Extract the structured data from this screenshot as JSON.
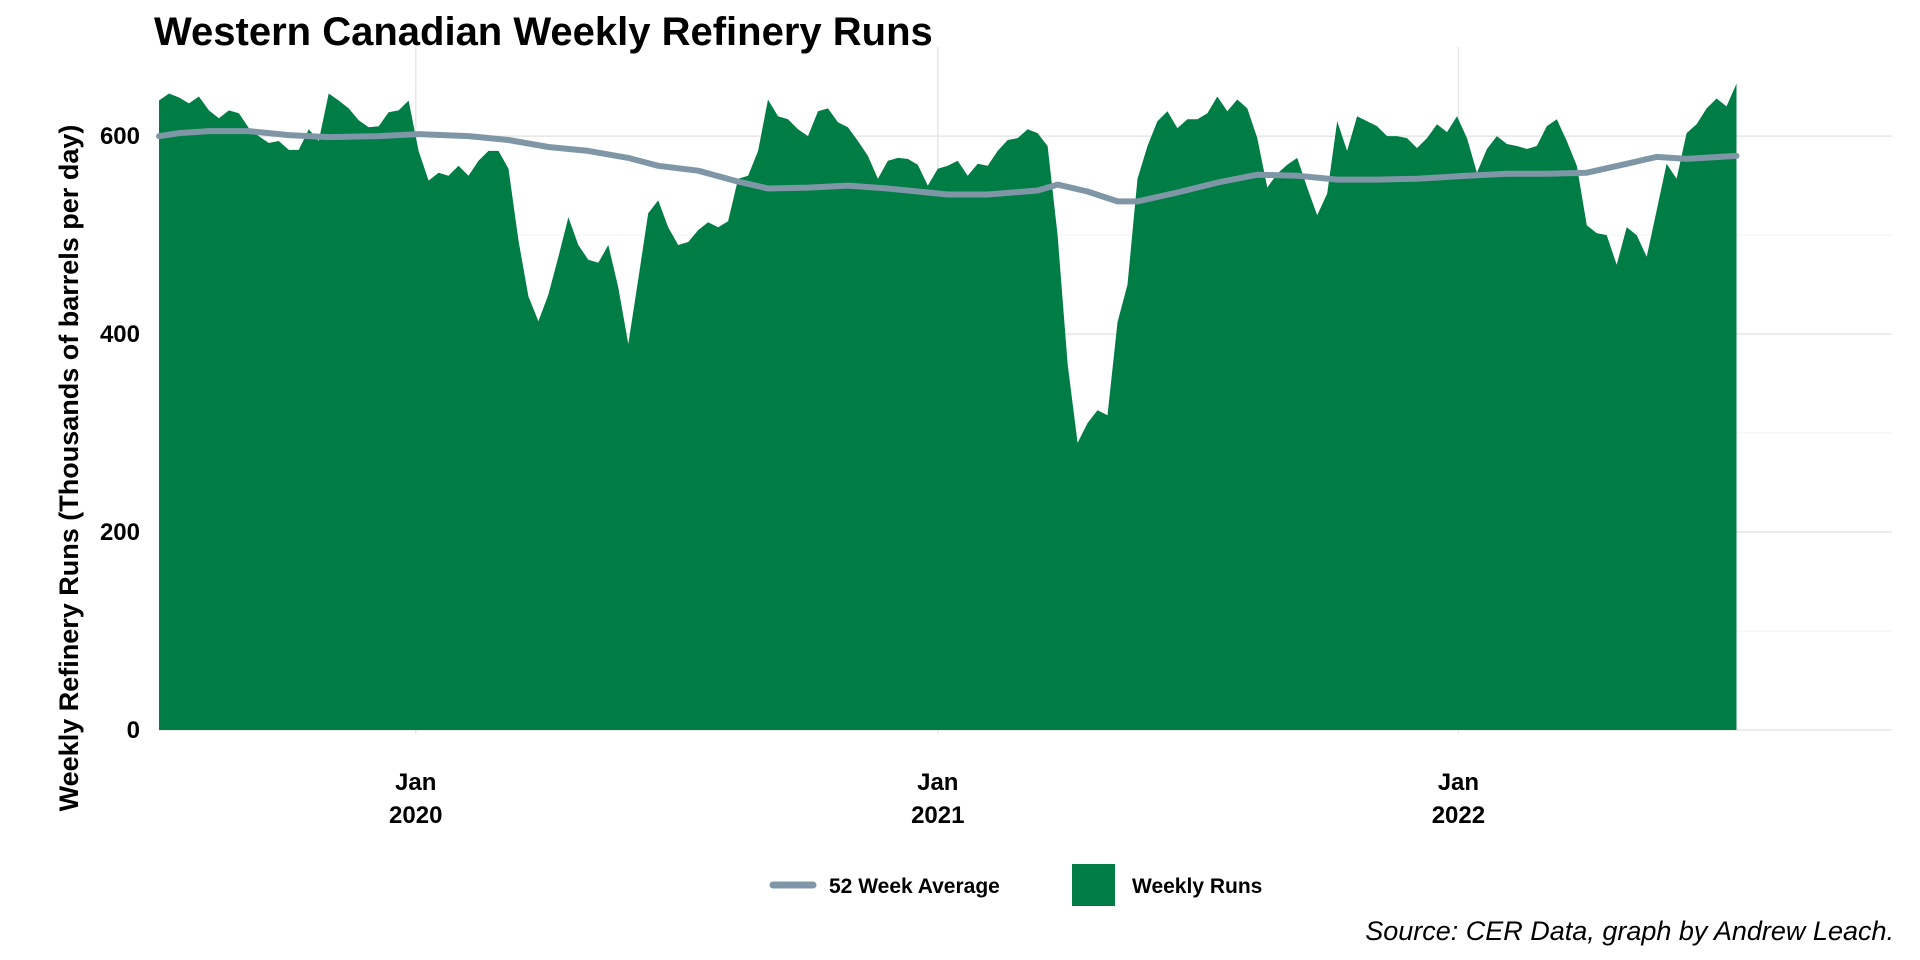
{
  "chart_data": {
    "type": "area",
    "title": "Western Canadian Weekly Refinery Runs",
    "xlabel": "",
    "ylabel": "Weekly Refinery Runs (Thousands of barrels per day)",
    "ylim": [
      0,
      690
    ],
    "xlim": [
      "2019-07-05",
      "2022-11-01"
    ],
    "y_ticks": [
      0,
      200,
      400,
      600
    ],
    "x_ticks": [
      {
        "date": "2020-01-01",
        "label": [
          "Jan",
          "2020"
        ]
      },
      {
        "date": "2021-01-01",
        "label": [
          "Jan",
          "2021"
        ]
      },
      {
        "date": "2022-01-01",
        "label": [
          "Jan",
          "2022"
        ]
      }
    ],
    "grid": true,
    "legend_position": "bottom",
    "series": [
      {
        "name": "Weekly Runs",
        "kind": "area",
        "color": "#007d45",
        "points": [
          [
            "2019-07-05",
            636
          ],
          [
            "2019-07-12",
            643
          ],
          [
            "2019-07-19",
            639
          ],
          [
            "2019-07-26",
            633
          ],
          [
            "2019-08-02",
            640
          ],
          [
            "2019-08-09",
            626
          ],
          [
            "2019-08-16",
            618
          ],
          [
            "2019-08-23",
            626
          ],
          [
            "2019-08-30",
            623
          ],
          [
            "2019-09-06",
            608
          ],
          [
            "2019-09-13",
            600
          ],
          [
            "2019-09-20",
            593
          ],
          [
            "2019-09-27",
            595
          ],
          [
            "2019-10-04",
            586
          ],
          [
            "2019-10-11",
            586
          ],
          [
            "2019-10-18",
            607
          ],
          [
            "2019-10-25",
            595
          ],
          [
            "2019-11-01",
            643
          ],
          [
            "2019-11-08",
            636
          ],
          [
            "2019-11-15",
            628
          ],
          [
            "2019-11-22",
            616
          ],
          [
            "2019-11-29",
            609
          ],
          [
            "2019-12-06",
            610
          ],
          [
            "2019-12-13",
            624
          ],
          [
            "2019-12-20",
            626
          ],
          [
            "2019-12-27",
            636
          ],
          [
            "2020-01-03",
            585
          ],
          [
            "2020-01-10",
            555
          ],
          [
            "2020-01-17",
            563
          ],
          [
            "2020-01-24",
            560
          ],
          [
            "2020-01-31",
            570
          ],
          [
            "2020-02-07",
            560
          ],
          [
            "2020-02-14",
            575
          ],
          [
            "2020-02-21",
            585
          ],
          [
            "2020-02-28",
            585
          ],
          [
            "2020-03-06",
            567
          ],
          [
            "2020-03-13",
            495
          ],
          [
            "2020-03-20",
            438
          ],
          [
            "2020-03-27",
            413
          ],
          [
            "2020-04-03",
            440
          ],
          [
            "2020-04-10",
            478
          ],
          [
            "2020-04-17",
            518
          ],
          [
            "2020-04-24",
            490
          ],
          [
            "2020-05-01",
            475
          ],
          [
            "2020-05-08",
            472
          ],
          [
            "2020-05-15",
            490
          ],
          [
            "2020-05-22",
            447
          ],
          [
            "2020-05-29",
            390
          ],
          [
            "2020-06-05",
            455
          ],
          [
            "2020-06-12",
            522
          ],
          [
            "2020-06-19",
            535
          ],
          [
            "2020-06-26",
            508
          ],
          [
            "2020-07-03",
            490
          ],
          [
            "2020-07-10",
            493
          ],
          [
            "2020-07-17",
            505
          ],
          [
            "2020-07-24",
            513
          ],
          [
            "2020-07-31",
            508
          ],
          [
            "2020-08-07",
            514
          ],
          [
            "2020-08-14",
            557
          ],
          [
            "2020-08-21",
            560
          ],
          [
            "2020-08-28",
            585
          ],
          [
            "2020-09-04",
            637
          ],
          [
            "2020-09-11",
            620
          ],
          [
            "2020-09-18",
            617
          ],
          [
            "2020-09-25",
            607
          ],
          [
            "2020-10-02",
            600
          ],
          [
            "2020-10-09",
            625
          ],
          [
            "2020-10-16",
            628
          ],
          [
            "2020-10-23",
            614
          ],
          [
            "2020-10-30",
            609
          ],
          [
            "2020-11-06",
            595
          ],
          [
            "2020-11-13",
            580
          ],
          [
            "2020-11-20",
            557
          ],
          [
            "2020-11-27",
            575
          ],
          [
            "2020-12-04",
            578
          ],
          [
            "2020-12-11",
            577
          ],
          [
            "2020-12-18",
            571
          ],
          [
            "2020-12-25",
            550
          ],
          [
            "2021-01-01",
            567
          ],
          [
            "2021-01-08",
            570
          ],
          [
            "2021-01-15",
            575
          ],
          [
            "2021-01-22",
            560
          ],
          [
            "2021-01-29",
            572
          ],
          [
            "2021-02-05",
            570
          ],
          [
            "2021-02-12",
            585
          ],
          [
            "2021-02-19",
            596
          ],
          [
            "2021-02-26",
            598
          ],
          [
            "2021-03-05",
            607
          ],
          [
            "2021-03-12",
            603
          ],
          [
            "2021-03-19",
            590
          ],
          [
            "2021-03-26",
            500
          ],
          [
            "2021-04-02",
            370
          ],
          [
            "2021-04-09",
            290
          ],
          [
            "2021-04-16",
            310
          ],
          [
            "2021-04-23",
            323
          ],
          [
            "2021-04-30",
            318
          ],
          [
            "2021-05-07",
            412
          ],
          [
            "2021-05-14",
            450
          ],
          [
            "2021-05-21",
            557
          ],
          [
            "2021-05-28",
            590
          ],
          [
            "2021-06-04",
            615
          ],
          [
            "2021-06-11",
            625
          ],
          [
            "2021-06-18",
            608
          ],
          [
            "2021-06-25",
            617
          ],
          [
            "2021-07-02",
            617
          ],
          [
            "2021-07-09",
            623
          ],
          [
            "2021-07-16",
            640
          ],
          [
            "2021-07-23",
            625
          ],
          [
            "2021-07-30",
            637
          ],
          [
            "2021-08-06",
            628
          ],
          [
            "2021-08-13",
            598
          ],
          [
            "2021-08-20",
            548
          ],
          [
            "2021-08-27",
            562
          ],
          [
            "2021-09-03",
            571
          ],
          [
            "2021-09-10",
            578
          ],
          [
            "2021-09-17",
            548
          ],
          [
            "2021-09-24",
            520
          ],
          [
            "2021-10-01",
            542
          ],
          [
            "2021-10-08",
            615
          ],
          [
            "2021-10-15",
            585
          ],
          [
            "2021-10-22",
            620
          ],
          [
            "2021-10-29",
            615
          ],
          [
            "2021-11-05",
            610
          ],
          [
            "2021-11-12",
            600
          ],
          [
            "2021-11-19",
            600
          ],
          [
            "2021-11-26",
            598
          ],
          [
            "2021-12-03",
            588
          ],
          [
            "2021-12-10",
            598
          ],
          [
            "2021-12-17",
            612
          ],
          [
            "2021-12-24",
            604
          ],
          [
            "2021-12-31",
            620
          ],
          [
            "2022-01-07",
            598
          ],
          [
            "2022-01-14",
            563
          ],
          [
            "2022-01-21",
            587
          ],
          [
            "2022-01-28",
            600
          ],
          [
            "2022-02-04",
            592
          ],
          [
            "2022-02-11",
            590
          ],
          [
            "2022-02-18",
            587
          ],
          [
            "2022-02-25",
            590
          ],
          [
            "2022-03-04",
            610
          ],
          [
            "2022-03-11",
            617
          ],
          [
            "2022-03-18",
            595
          ],
          [
            "2022-03-25",
            570
          ],
          [
            "2022-04-01",
            510
          ],
          [
            "2022-04-08",
            502
          ],
          [
            "2022-04-15",
            500
          ],
          [
            "2022-04-22",
            470
          ],
          [
            "2022-04-29",
            508
          ],
          [
            "2022-05-06",
            500
          ],
          [
            "2022-05-13",
            478
          ],
          [
            "2022-05-20",
            525
          ],
          [
            "2022-05-27",
            572
          ],
          [
            "2022-06-03",
            557
          ],
          [
            "2022-06-10",
            603
          ],
          [
            "2022-06-17",
            612
          ],
          [
            "2022-06-24",
            628
          ],
          [
            "2022-07-01",
            638
          ],
          [
            "2022-07-08",
            630
          ],
          [
            "2022-07-15",
            653
          ]
        ]
      },
      {
        "name": "52 Week Average",
        "kind": "line",
        "color": "#7f96a6",
        "points": [
          [
            "2019-07-05",
            600
          ],
          [
            "2019-07-19",
            603
          ],
          [
            "2019-08-09",
            605
          ],
          [
            "2019-09-06",
            605
          ],
          [
            "2019-10-04",
            601
          ],
          [
            "2019-11-01",
            599
          ],
          [
            "2019-12-06",
            600
          ],
          [
            "2020-01-03",
            602
          ],
          [
            "2020-02-07",
            600
          ],
          [
            "2020-03-06",
            596
          ],
          [
            "2020-04-03",
            589
          ],
          [
            "2020-05-01",
            585
          ],
          [
            "2020-05-29",
            578
          ],
          [
            "2020-06-19",
            570
          ],
          [
            "2020-07-17",
            565
          ],
          [
            "2020-08-14",
            554
          ],
          [
            "2020-09-04",
            547
          ],
          [
            "2020-10-02",
            548
          ],
          [
            "2020-10-30",
            550
          ],
          [
            "2020-11-27",
            547
          ],
          [
            "2020-12-18",
            544
          ],
          [
            "2021-01-08",
            541
          ],
          [
            "2021-02-05",
            541
          ],
          [
            "2021-03-12",
            545
          ],
          [
            "2021-03-26",
            551
          ],
          [
            "2021-04-16",
            544
          ],
          [
            "2021-05-07",
            534
          ],
          [
            "2021-05-21",
            534
          ],
          [
            "2021-06-18",
            543
          ],
          [
            "2021-07-16",
            553
          ],
          [
            "2021-08-13",
            561
          ],
          [
            "2021-09-10",
            560
          ],
          [
            "2021-10-08",
            556
          ],
          [
            "2021-11-05",
            556
          ],
          [
            "2021-12-03",
            557
          ],
          [
            "2022-01-07",
            560
          ],
          [
            "2022-02-04",
            562
          ],
          [
            "2022-03-04",
            562
          ],
          [
            "2022-04-01",
            563
          ],
          [
            "2022-04-29",
            572
          ],
          [
            "2022-05-20",
            579
          ],
          [
            "2022-06-10",
            577
          ],
          [
            "2022-07-15",
            580
          ]
        ]
      }
    ],
    "legend": [
      "52 Week Average",
      "Weekly Runs"
    ],
    "caption": "Source: CER Data, graph by Andrew Leach."
  }
}
